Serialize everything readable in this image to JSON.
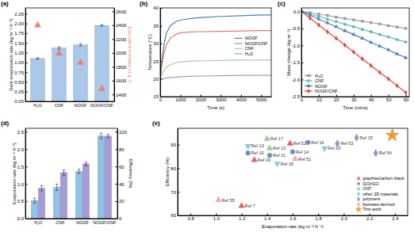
{
  "chart_data": [
    {
      "type": "bar",
      "title": "(a)",
      "y_label": "Dark evaporation rate (kg m⁻² h⁻¹)",
      "y2_label": "Equivalent enthalpy (J g⁻¹)",
      "categories": [
        "H₂O",
        "CNF",
        "NOGF",
        "NOGF/CNF"
      ],
      "series": [
        {
          "type": "bar",
          "color": "#a9c8ea",
          "values": [
            1.1,
            1.37,
            1.45,
            1.95
          ],
          "errors": [
            0.02,
            0.03,
            0.03,
            0.02
          ]
        },
        {
          "type": "scatter",
          "marker": "triangle",
          "axis": "y2",
          "color": "#ef7f73",
          "values": [
            2400,
            1990,
            1860,
            1480
          ]
        }
      ],
      "ylim": [
        0,
        2.4
      ],
      "yticks": [
        {
          "value": 0,
          "label": "0.00"
        },
        0.25,
        {
          "value": 0.5,
          "label": "0.50"
        },
        0.75,
        {
          "value": 1,
          "label": "1.00"
        },
        1.25,
        {
          "value": 1.5,
          "label": "1.50"
        },
        1.75,
        {
          "value": 2,
          "label": "2.00"
        },
        2.25
      ],
      "y2lim": [
        1300,
        2650
      ],
      "y2ticks": [
        1400,
        1600,
        1800,
        2000,
        2200,
        2400,
        2600
      ]
    },
    {
      "type": "line",
      "title": "(b)",
      "x_label": "Time (s)",
      "y_label": "Temperature (°C)",
      "x": [
        0,
        100,
        200,
        300,
        500,
        800,
        1000,
        1500,
        2000,
        3000,
        4000,
        5000,
        5500
      ],
      "series": [
        {
          "name": "NOGF",
          "color": "#4a7fc1",
          "values": [
            20.0,
            26.0,
            30.0,
            32.8,
            35.0,
            36.2,
            36.6,
            37.0,
            37.3,
            37.6,
            37.8,
            38.0,
            38.0
          ]
        },
        {
          "name": "NOGF/CNF",
          "color": "#e07a72",
          "values": [
            20.0,
            24.5,
            27.5,
            29.5,
            31.5,
            32.6,
            33.0,
            33.2,
            33.3,
            33.4,
            33.5,
            33.6,
            33.6
          ]
        },
        {
          "name": "CNF",
          "color": "#a6cfa0",
          "values": [
            20.0,
            21.5,
            22.5,
            23.2,
            24.0,
            24.6,
            24.8,
            25.0,
            25.1,
            25.2,
            25.3,
            25.3,
            25.3
          ]
        },
        {
          "name": "H₂O",
          "color": "#9aa5b5",
          "values": [
            19.8,
            20.0,
            20.1,
            20.2,
            20.4,
            20.5,
            20.6,
            20.7,
            20.8,
            20.9,
            21.0,
            21.0,
            21.0
          ]
        }
      ],
      "xlim": [
        0,
        5500
      ],
      "xticks": [
        0,
        1000,
        2000,
        3000,
        4000,
        5000
      ],
      "ylim": [
        15,
        40
      ],
      "yticks": [
        15,
        20,
        25,
        30,
        35,
        40
      ],
      "legend": "right"
    },
    {
      "type": "line",
      "title": "(c)",
      "x_label": "Time (mins)",
      "y_label": "Mass change (kg m⁻²)",
      "x": [
        0,
        5,
        10,
        15,
        20,
        25,
        30,
        35,
        40,
        45,
        50,
        55,
        60
      ],
      "series": [
        {
          "name": "H₂O",
          "color": "#9e9e9e",
          "marker": "square",
          "values": [
            0,
            -0.04,
            -0.08,
            -0.12,
            -0.17,
            -0.21,
            -0.25,
            -0.29,
            -0.33,
            -0.37,
            -0.42,
            -0.46,
            -0.5
          ]
        },
        {
          "name": "CNF",
          "color": "#5fb8ae",
          "marker": "circle",
          "values": [
            0,
            -0.08,
            -0.15,
            -0.23,
            -0.3,
            -0.38,
            -0.45,
            -0.53,
            -0.6,
            -0.68,
            -0.75,
            -0.83,
            -0.9
          ]
        },
        {
          "name": "NOGF",
          "color": "#4f7fc4",
          "marker": "triangle",
          "values": [
            0,
            -0.11,
            -0.23,
            -0.34,
            -0.45,
            -0.57,
            -0.68,
            -0.79,
            -0.91,
            -1.02,
            -1.13,
            -1.25,
            -1.36
          ]
        },
        {
          "name": "NOGF/CNF",
          "color": "#e0423c",
          "marker": "diamond",
          "values": [
            0,
            -0.2,
            -0.4,
            -0.6,
            -0.79,
            -0.99,
            -1.19,
            -1.39,
            -1.59,
            -1.79,
            -1.98,
            -2.18,
            -2.38
          ]
        }
      ],
      "xlim": [
        0,
        62
      ],
      "xticks": [
        0,
        10,
        20,
        30,
        40,
        50,
        60
      ],
      "ylim": [
        -2.5,
        0.1
      ],
      "yticks": [
        -2.5,
        {
          "value": -2,
          "label": "-2.0"
        },
        -1.5,
        {
          "value": -1,
          "label": "-1.0"
        },
        -0.5,
        {
          "value": 0,
          "label": "0.0"
        }
      ],
      "legend": "lower left"
    },
    {
      "type": "bar",
      "title": "(d)",
      "y_label": "Evaporation rate (kg m⁻² h⁻¹)",
      "y2_label": "Efficiency (%)",
      "categories": [
        "H₂O",
        "CNF",
        "NOGF",
        "NOGF/CNF"
      ],
      "series": [
        {
          "type": "bar",
          "color": "#8fc3e8",
          "values": [
            0.52,
            0.9,
            1.36,
            2.38
          ],
          "errors": [
            0.07,
            0.09,
            0.06,
            0.08
          ]
        },
        {
          "type": "bar",
          "axis": "y2",
          "color": "#a89bd8",
          "values": [
            35,
            53,
            63,
            95
          ],
          "errors": [
            3,
            3,
            2,
            2
          ]
        }
      ],
      "ylim": [
        0,
        2.6
      ],
      "yticks": [
        {
          "value": 0,
          "label": "0.0"
        },
        0.5,
        {
          "value": 1,
          "label": "1.0"
        },
        1.5,
        {
          "value": 2,
          "label": "2.0"
        },
        2.5
      ],
      "y2lim": [
        0,
        104
      ],
      "y2ticks": [
        0,
        20,
        40,
        60,
        80,
        100
      ]
    },
    {
      "type": "scatter",
      "title": "(e)",
      "x_label": "Evaporation rate (kg m⁻² h⁻¹)",
      "y_label": "Efficiency (%)",
      "series": [
        {
          "name": "graphite/carbon black",
          "color": "#e8605e",
          "marker": "triangle",
          "x": [
            1.2,
            1.3,
            1.58
          ],
          "values": [
            64.0,
            83.5,
            90.5
          ],
          "labels": [
            "Ref 7",
            "Ref 19",
            "Ref 52"
          ]
        },
        {
          "name": "GO/rGO",
          "color": "#6c8ebf",
          "marker": "circle",
          "x": [
            1.25,
            1.42,
            1.6,
            1.72
          ],
          "values": [
            86.5,
            85.5,
            87.0,
            91.0
          ],
          "labels": [
            "Ref 10",
            "Ref 11",
            "Ref 14",
            "Ref 16"
          ]
        },
        {
          "name": "CNT",
          "color": "#8fd18f",
          "marker": "triangle",
          "x": [
            1.4,
            1.42
          ],
          "values": [
            92.5,
            88.5
          ],
          "labels": [
            "Ref 17",
            "Ref 12"
          ]
        },
        {
          "name": "other 2D materials",
          "color": "#7fd3e0",
          "marker": "triangle-down",
          "x": [
            1.25,
            1.48,
            1.85
          ],
          "values": [
            89.5,
            82.0,
            88.5
          ],
          "labels": [
            "Ref 13",
            "Ref 18",
            "Ref 20"
          ]
        },
        {
          "name": "polymers",
          "color": "#9b8ec9",
          "marker": "diamond",
          "x": [
            1.95,
            2.1,
            2.25
          ],
          "values": [
            90.5,
            93.0,
            86.5
          ],
          "labels": [
            "Ref 53",
            "Ref 15",
            "Ref 54"
          ]
        },
        {
          "name": "biomass-derived",
          "color": "#f4a6c0",
          "marker": "triangle",
          "x": [
            1.02,
            1.62
          ],
          "values": [
            66.5,
            84.0
          ],
          "labels": [
            "Ref 55",
            "Ref 51"
          ]
        },
        {
          "name": "This work",
          "color": "#f39c34",
          "marker": "star",
          "x": [
            2.38
          ],
          "values": [
            94.0
          ]
        }
      ],
      "xlim": [
        0.7,
        2.5
      ],
      "xticks": [
        0.8,
        {
          "value": 1,
          "label": "1.0"
        },
        1.2,
        1.4,
        1.6,
        1.8,
        {
          "value": 2,
          "label": "2.0"
        },
        2.2,
        2.4
      ],
      "ylim": [
        60,
        97
      ],
      "yticks": [
        60,
        70,
        80,
        90
      ],
      "legend": "lower right"
    }
  ]
}
